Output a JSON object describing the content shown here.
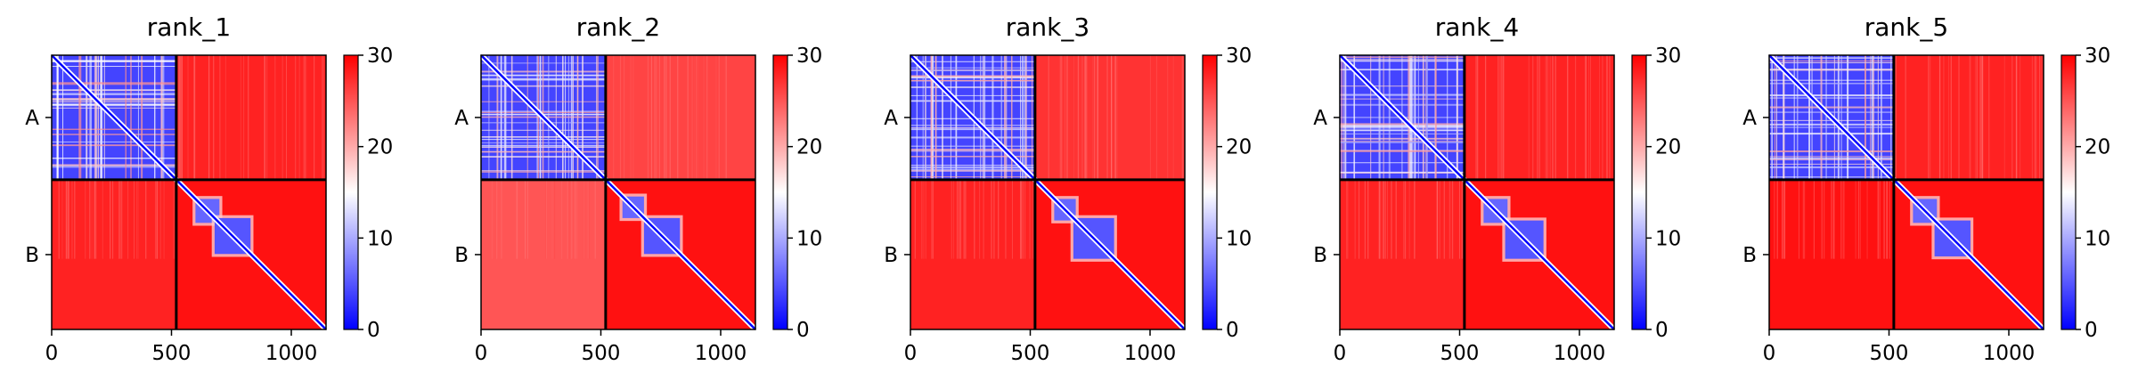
{
  "colors": {
    "low": "#0000ff",
    "mid": "#ffffff",
    "high": "#ff0000",
    "boundary": "#000000"
  },
  "chart_data": [
    {
      "type": "heatmap",
      "title": "rank_1",
      "chains": [
        {
          "name": "A",
          "start": 0,
          "end": 520
        },
        {
          "name": "B",
          "start": 520,
          "end": 1145
        }
      ],
      "xlim": [
        0,
        1145
      ],
      "xticks": [
        "0",
        "500",
        "1000"
      ],
      "yticks": [
        "A",
        "B"
      ],
      "colorbar": {
        "min": 0,
        "max": 30,
        "ticks": [
          "0",
          "10",
          "20",
          "30"
        ]
      },
      "blocks": {
        "A_A": 4,
        "A_B": 28,
        "B_A": 28,
        "B_B": 29
      },
      "domains": [
        {
          "start": 600,
          "end": 700,
          "value": 6
        },
        {
          "start": 680,
          "end": 830,
          "value": 5
        }
      ]
    },
    {
      "type": "heatmap",
      "title": "rank_2",
      "chains": [
        {
          "name": "A",
          "start": 0,
          "end": 520
        },
        {
          "name": "B",
          "start": 520,
          "end": 1145
        }
      ],
      "xlim": [
        0,
        1145
      ],
      "xticks": [
        "0",
        "500",
        "1000"
      ],
      "yticks": [
        "A",
        "B"
      ],
      "colorbar": {
        "min": 0,
        "max": 30,
        "ticks": [
          "0",
          "10",
          "20",
          "30"
        ]
      },
      "blocks": {
        "A_A": 4,
        "A_B": 26,
        "B_A": 25,
        "B_B": 29
      },
      "domains": [
        {
          "start": 590,
          "end": 680,
          "value": 6
        },
        {
          "start": 680,
          "end": 830,
          "value": 5
        }
      ]
    },
    {
      "type": "heatmap",
      "title": "rank_3",
      "chains": [
        {
          "name": "A",
          "start": 0,
          "end": 520
        },
        {
          "name": "B",
          "start": 520,
          "end": 1145
        }
      ],
      "xlim": [
        0,
        1145
      ],
      "xticks": [
        "0",
        "500",
        "1000"
      ],
      "yticks": [
        "A",
        "B"
      ],
      "colorbar": {
        "min": 0,
        "max": 30,
        "ticks": [
          "0",
          "10",
          "20",
          "30"
        ]
      },
      "blocks": {
        "A_A": 4,
        "A_B": 27,
        "B_A": 28,
        "B_B": 29
      },
      "domains": [
        {
          "start": 600,
          "end": 690,
          "value": 6
        },
        {
          "start": 680,
          "end": 850,
          "value": 5
        }
      ]
    },
    {
      "type": "heatmap",
      "title": "rank_4",
      "chains": [
        {
          "name": "A",
          "start": 0,
          "end": 520
        },
        {
          "name": "B",
          "start": 520,
          "end": 1145
        }
      ],
      "xlim": [
        0,
        1145
      ],
      "xticks": [
        "0",
        "500",
        "1000"
      ],
      "yticks": [
        "A",
        "B"
      ],
      "colorbar": {
        "min": 0,
        "max": 30,
        "ticks": [
          "0",
          "10",
          "20",
          "30"
        ]
      },
      "blocks": {
        "A_A": 4,
        "A_B": 28,
        "B_A": 28,
        "B_B": 29
      },
      "domains": [
        {
          "start": 600,
          "end": 700,
          "value": 6
        },
        {
          "start": 690,
          "end": 850,
          "value": 5
        }
      ]
    },
    {
      "type": "heatmap",
      "title": "rank_5",
      "chains": [
        {
          "name": "A",
          "start": 0,
          "end": 520
        },
        {
          "name": "B",
          "start": 520,
          "end": 1145
        }
      ],
      "xlim": [
        0,
        1145
      ],
      "xticks": [
        "0",
        "500",
        "1000"
      ],
      "yticks": [
        "A",
        "B"
      ],
      "colorbar": {
        "min": 0,
        "max": 30,
        "ticks": [
          "0",
          "10",
          "20",
          "30"
        ]
      },
      "blocks": {
        "A_A": 4,
        "A_B": 28,
        "B_A": 29,
        "B_B": 29
      },
      "domains": [
        {
          "start": 600,
          "end": 700,
          "value": 6
        },
        {
          "start": 690,
          "end": 840,
          "value": 5
        }
      ]
    }
  ]
}
